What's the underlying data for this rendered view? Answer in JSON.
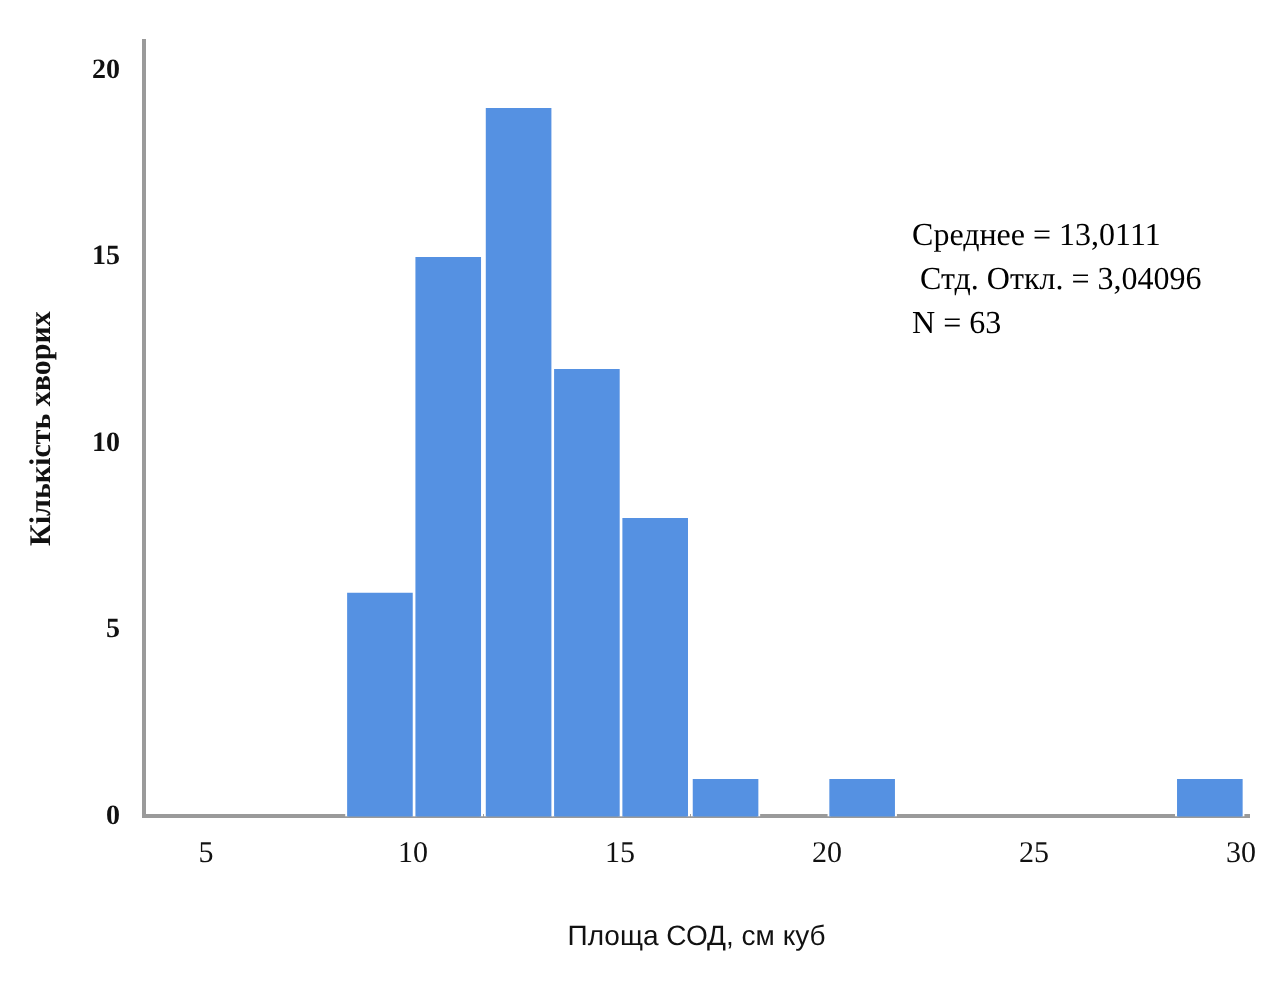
{
  "chart_data": {
    "type": "histogram",
    "xlabel": "Площа СОД, см куб",
    "ylabel": "Кількість хворих",
    "bins": [
      8.4,
      10.0,
      11.7,
      13.4,
      15.0,
      16.7,
      18.4,
      20.0,
      21.7,
      23.4,
      25.1,
      26.7,
      28.4,
      30.1
    ],
    "values": [
      6,
      15,
      19,
      12,
      8,
      1,
      0,
      1,
      0,
      0,
      0,
      0,
      1
    ],
    "color": "#5591e2",
    "xlim": [
      3.5,
      30.2
    ],
    "xticks": [
      5,
      10,
      15,
      20,
      25,
      30
    ],
    "ylim": [
      0,
      20.8
    ],
    "yticks": [
      0,
      5,
      10,
      15,
      20
    ],
    "grid": false,
    "legend": false,
    "annotations": [
      "Среднее = 13,0111",
      "Стд. Откл. = 3,04096",
      "N = 63"
    ]
  }
}
